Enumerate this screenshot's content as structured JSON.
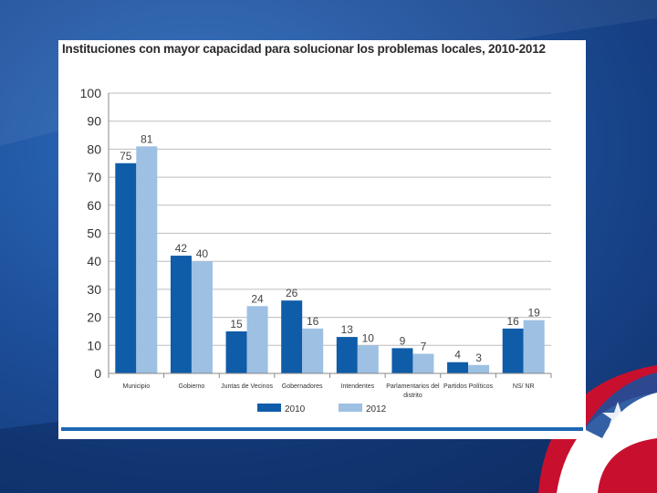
{
  "slide": {
    "colors": {
      "background": "#1d4f9a",
      "accent_bar": "#1c67b5"
    }
  },
  "chart_data": {
    "type": "bar",
    "title": "Instituciones con mayor capacidad para solucionar los problemas locales, 2010-2012",
    "categories": [
      "Municipio",
      "Gobierno",
      "Juntas de Vecinos",
      "Gobernadores",
      "Intendentes",
      "Parlamentarios del distrito",
      "Partidos Políticos",
      "NS/ NR"
    ],
    "series": [
      {
        "name": "2010",
        "color": "#0f5ca8",
        "values": [
          75,
          42,
          15,
          26,
          13,
          9,
          4,
          16
        ]
      },
      {
        "name": "2012",
        "color": "#9dc0e3",
        "values": [
          81,
          40,
          24,
          16,
          10,
          7,
          3,
          19
        ]
      }
    ],
    "xlabel": "",
    "ylabel": "",
    "ylim": [
      0,
      100
    ],
    "yticks": [
      0,
      10,
      20,
      30,
      40,
      50,
      60,
      70,
      80,
      90,
      100
    ],
    "grid": true,
    "legend_position": "bottom",
    "data_labels": true
  }
}
